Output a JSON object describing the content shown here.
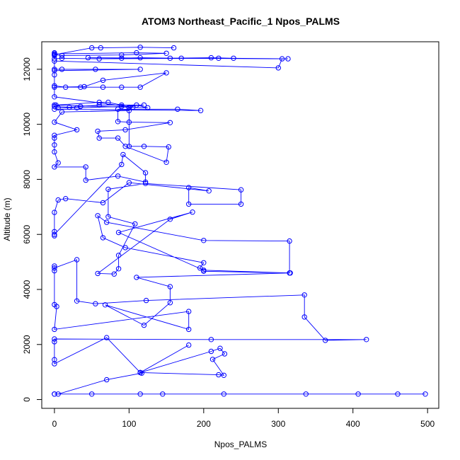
{
  "chart_data": {
    "type": "line",
    "title": "ATOM3 Northeast_Pacific_1 Npos_PALMS",
    "xlabel": "Npos_PALMS",
    "ylabel": "Altitude (m)",
    "xlim": [
      -17,
      515
    ],
    "ylim": [
      -320,
      13000
    ],
    "x_ticks": [
      0,
      100,
      200,
      300,
      400,
      500
    ],
    "y_ticks": [
      0,
      2000,
      4000,
      6000,
      8000,
      10000,
      12000
    ],
    "grid": false,
    "legend": "none",
    "line_color": "#0000ff",
    "marker": "open-circle",
    "points": [
      [
        0,
        200
      ],
      [
        50,
        200
      ],
      [
        0,
        200
      ],
      [
        115,
        200
      ],
      [
        145,
        200
      ],
      [
        227,
        200
      ],
      [
        337,
        200
      ],
      [
        407,
        200
      ],
      [
        460,
        200
      ],
      [
        497,
        200
      ],
      [
        5,
        200
      ],
      [
        70,
        720
      ],
      [
        117,
        960
      ],
      [
        115,
        980
      ],
      [
        220,
        900
      ],
      [
        227,
        880
      ],
      [
        212,
        1460
      ],
      [
        228,
        1660
      ],
      [
        222,
        1860
      ],
      [
        210,
        1750
      ],
      [
        115,
        980
      ],
      [
        180,
        1980
      ],
      [
        115,
        980
      ],
      [
        70,
        2250
      ],
      [
        0,
        1300
      ],
      [
        0,
        1450
      ],
      [
        0,
        2100
      ],
      [
        0,
        2200
      ],
      [
        210,
        2180
      ],
      [
        418,
        2180
      ],
      [
        363,
        2150
      ],
      [
        335,
        3000
      ],
      [
        335,
        3800
      ],
      [
        123,
        3600
      ],
      [
        55,
        3480
      ],
      [
        30,
        3580
      ],
      [
        30,
        5080
      ],
      [
        0,
        4780
      ],
      [
        0,
        4680
      ],
      [
        0,
        4850
      ],
      [
        0,
        3450
      ],
      [
        3,
        3380
      ],
      [
        0,
        2550
      ],
      [
        180,
        3200
      ],
      [
        180,
        2550
      ],
      [
        68,
        3440
      ],
      [
        120,
        2700
      ],
      [
        155,
        3520
      ],
      [
        155,
        4100
      ],
      [
        110,
        4440
      ],
      [
        316,
        4600
      ],
      [
        200,
        4660
      ],
      [
        195,
        4780
      ],
      [
        200,
        4970
      ],
      [
        95,
        5520
      ],
      [
        65,
        5880
      ],
      [
        58,
        6680
      ],
      [
        70,
        6440
      ],
      [
        200,
        5780
      ],
      [
        315,
        5760
      ],
      [
        315,
        4600
      ],
      [
        200,
        4700
      ],
      [
        86,
        6070
      ],
      [
        185,
        6810
      ],
      [
        155,
        6550
      ],
      [
        58,
        4580
      ],
      [
        80,
        4560
      ],
      [
        86,
        4750
      ],
      [
        86,
        5240
      ],
      [
        108,
        6380
      ],
      [
        72,
        6640
      ],
      [
        72,
        7640
      ],
      [
        122,
        7850
      ],
      [
        250,
        7620
      ],
      [
        250,
        7100
      ],
      [
        180,
        7100
      ],
      [
        180,
        7700
      ],
      [
        207,
        7580
      ],
      [
        100,
        7880
      ],
      [
        65,
        7150
      ],
      [
        15,
        7300
      ],
      [
        5,
        7250
      ],
      [
        0,
        6800
      ],
      [
        0,
        6100
      ],
      [
        0,
        5950
      ],
      [
        0,
        6000
      ],
      [
        90,
        8540
      ],
      [
        92,
        8900
      ],
      [
        122,
        8240
      ],
      [
        122,
        7900
      ],
      [
        85,
        8120
      ],
      [
        42,
        7970
      ],
      [
        42,
        8450
      ],
      [
        0,
        8450
      ],
      [
        5,
        8600
      ],
      [
        0,
        9000
      ],
      [
        0,
        9250
      ],
      [
        0,
        9500
      ],
      [
        0,
        9600
      ],
      [
        30,
        9800
      ],
      [
        0,
        10080
      ],
      [
        10,
        10450
      ],
      [
        100,
        10500
      ],
      [
        100,
        9200
      ],
      [
        120,
        9200
      ],
      [
        153,
        9180
      ],
      [
        150,
        8620
      ],
      [
        95,
        9200
      ],
      [
        85,
        9500
      ],
      [
        60,
        9500
      ],
      [
        58,
        9750
      ],
      [
        95,
        9800
      ],
      [
        155,
        10060
      ],
      [
        100,
        10080
      ],
      [
        85,
        10100
      ],
      [
        85,
        10550
      ],
      [
        165,
        10550
      ],
      [
        196,
        10500
      ],
      [
        0,
        10550
      ],
      [
        5,
        10600
      ],
      [
        30,
        10600
      ],
      [
        90,
        10650
      ],
      [
        120,
        10700
      ],
      [
        60,
        10700
      ],
      [
        35,
        10650
      ],
      [
        20,
        10620
      ],
      [
        0,
        10650
      ],
      [
        2,
        10700
      ],
      [
        60,
        10800
      ],
      [
        72,
        10800
      ],
      [
        90,
        10700
      ],
      [
        100,
        10600
      ],
      [
        110,
        10700
      ],
      [
        125,
        10600
      ],
      [
        0,
        10700
      ],
      [
        100,
        10620
      ],
      [
        105,
        10620
      ],
      [
        0,
        11000
      ],
      [
        0,
        11400
      ],
      [
        15,
        11350
      ],
      [
        35,
        11350
      ],
      [
        65,
        11350
      ],
      [
        90,
        11350
      ],
      [
        115,
        11350
      ],
      [
        150,
        11870
      ],
      [
        65,
        11600
      ],
      [
        40,
        11370
      ],
      [
        0,
        11350
      ],
      [
        0,
        11800
      ],
      [
        0,
        12000
      ],
      [
        10,
        12000
      ],
      [
        55,
        12000
      ],
      [
        115,
        12000
      ],
      [
        0,
        11950
      ],
      [
        0,
        12300
      ],
      [
        300,
        12050
      ],
      [
        305,
        12380
      ],
      [
        45,
        12420
      ],
      [
        90,
        12400
      ],
      [
        115,
        12420
      ],
      [
        170,
        12400
      ],
      [
        155,
        12400
      ],
      [
        210,
        12420
      ],
      [
        240,
        12400
      ],
      [
        313,
        12380
      ],
      [
        220,
        12400
      ],
      [
        60,
        12380
      ],
      [
        10,
        12400
      ],
      [
        0,
        12380
      ],
      [
        0,
        12500
      ],
      [
        0,
        12600
      ],
      [
        0,
        12560
      ],
      [
        110,
        12600
      ],
      [
        150,
        12580
      ],
      [
        90,
        12520
      ],
      [
        10,
        12500
      ],
      [
        0,
        12530
      ],
      [
        50,
        12780
      ],
      [
        62,
        12780
      ],
      [
        115,
        12800
      ],
      [
        160,
        12780
      ]
    ]
  }
}
